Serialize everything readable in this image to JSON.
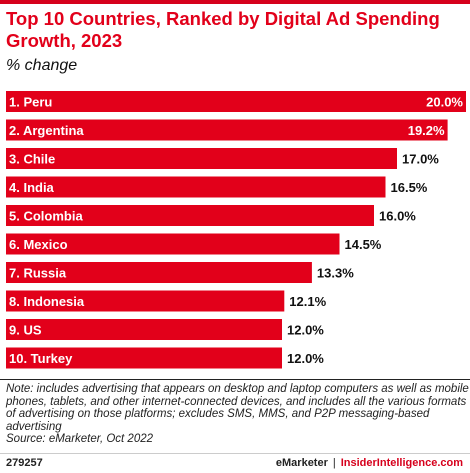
{
  "title": "Top 10 Countries, Ranked by Digital Ad Spending Growth, 2023",
  "subtitle": "% change",
  "chart_data": {
    "type": "bar",
    "orientation": "horizontal",
    "title": "Top 10 Countries, Ranked by Digital Ad Spending Growth, 2023",
    "subtitle": "% change",
    "categories": [
      "1. Peru",
      "2. Argentina",
      "3. Chile",
      "4. India",
      "5. Colombia",
      "6. Mexico",
      "7. Russia",
      "8. Indonesia",
      "9. US",
      "10. Turkey"
    ],
    "values": [
      20.0,
      19.2,
      17.0,
      16.5,
      16.0,
      14.5,
      13.3,
      12.1,
      12.0,
      12.0
    ],
    "value_labels": [
      "20.0%",
      "19.2%",
      "17.0%",
      "16.5%",
      "16.0%",
      "14.5%",
      "13.3%",
      "12.1%",
      "12.0%",
      "12.0%"
    ],
    "xlim": [
      0,
      20
    ],
    "grid": false,
    "legend": "none",
    "bar_color": "#e2001a"
  },
  "note_lines": [
    "Note: includes advertising that appears on desktop and laptop computers as well as mobile",
    "phones, tablets, and other internet-connected devices, and includes all the various formats",
    "of advertising on those platforms; excludes SMS, MMS, and P2P messaging-based",
    "advertising",
    "Source: eMarketer, Oct 2022"
  ],
  "footer": {
    "chart_id": "279257",
    "brand_1": "eMarketer",
    "separator": "|",
    "brand_2": "InsiderIntelligence.com"
  }
}
